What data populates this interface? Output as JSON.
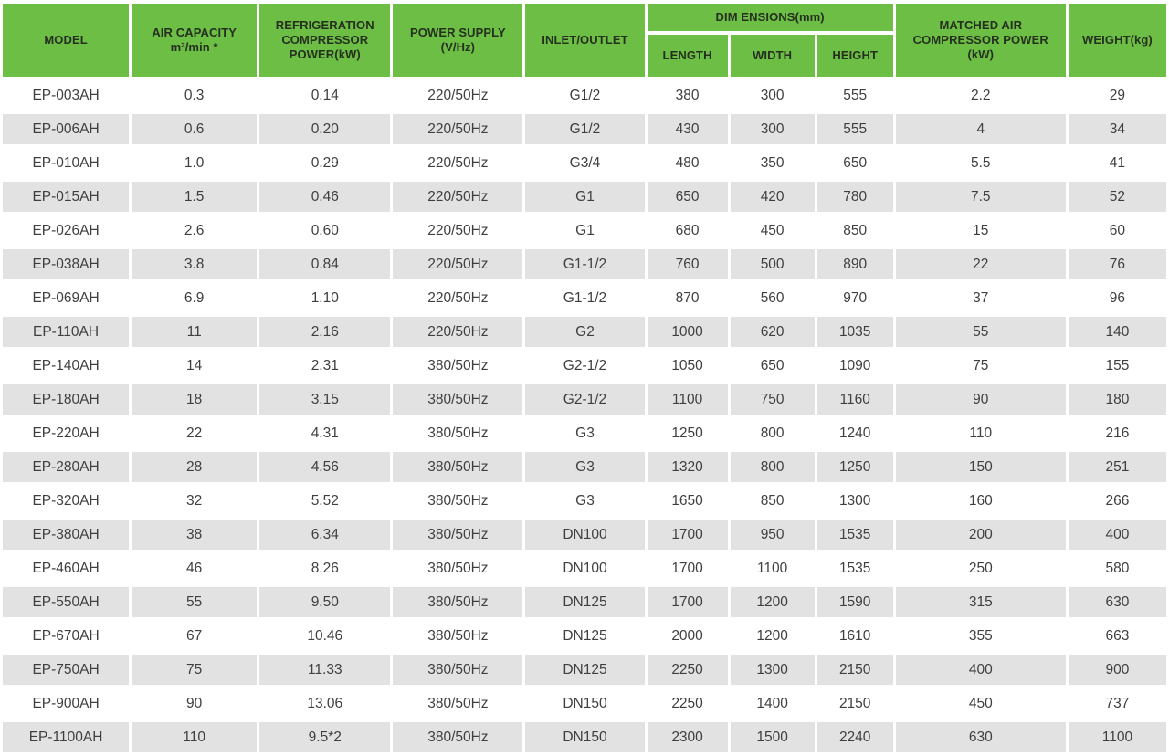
{
  "table": {
    "header": {
      "model": "MODEL",
      "air_capacity": "AIR CAPACITY\nm³/min *",
      "refrigeration_power": "REFRIGERATION\nCOMPRESSOR\nPOWER(kW)",
      "power_supply": "POWER SUPPLY\n(V/Hz)",
      "inlet_outlet": "INLET/OUTLET",
      "dimensions_group": "DIM ENSIONS(mm)",
      "length": "LENGTH",
      "width": "WIDTH",
      "height": "HEIGHT",
      "matched_power": "MATCHED AIR\nCOMPRESSOR POWER\n(kW)",
      "weight": "WEIGHT(kg)"
    },
    "column_keys": [
      "model",
      "air-capacity",
      "refrigeration-power",
      "power-supply",
      "inlet-outlet",
      "length",
      "width",
      "height",
      "matched-power",
      "weight"
    ],
    "rows": [
      [
        "EP-003AH",
        "0.3",
        "0.14",
        "220/50Hz",
        "G1/2",
        "380",
        "300",
        "555",
        "2.2",
        "29"
      ],
      [
        "EP-006AH",
        "0.6",
        "0.20",
        "220/50Hz",
        "G1/2",
        "430",
        "300",
        "555",
        "4",
        "34"
      ],
      [
        "EP-010AH",
        "1.0",
        "0.29",
        "220/50Hz",
        "G3/4",
        "480",
        "350",
        "650",
        "5.5",
        "41"
      ],
      [
        "EP-015AH",
        "1.5",
        "0.46",
        "220/50Hz",
        "G1",
        "650",
        "420",
        "780",
        "7.5",
        "52"
      ],
      [
        "EP-026AH",
        "2.6",
        "0.60",
        "220/50Hz",
        "G1",
        "680",
        "450",
        "850",
        "15",
        "60"
      ],
      [
        "EP-038AH",
        "3.8",
        "0.84",
        "220/50Hz",
        "G1-1/2",
        "760",
        "500",
        "890",
        "22",
        "76"
      ],
      [
        "EP-069AH",
        "6.9",
        "1.10",
        "220/50Hz",
        "G1-1/2",
        "870",
        "560",
        "970",
        "37",
        "96"
      ],
      [
        "EP-110AH",
        "11",
        "2.16",
        "220/50Hz",
        "G2",
        "1000",
        "620",
        "1035",
        "55",
        "140"
      ],
      [
        "EP-140AH",
        "14",
        "2.31",
        "380/50Hz",
        "G2-1/2",
        "1050",
        "650",
        "1090",
        "75",
        "155"
      ],
      [
        "EP-180AH",
        "18",
        "3.15",
        "380/50Hz",
        "G2-1/2",
        "1100",
        "750",
        "1160",
        "90",
        "180"
      ],
      [
        "EP-220AH",
        "22",
        "4.31",
        "380/50Hz",
        "G3",
        "1250",
        "800",
        "1240",
        "110",
        "216"
      ],
      [
        "EP-280AH",
        "28",
        "4.56",
        "380/50Hz",
        "G3",
        "1320",
        "800",
        "1250",
        "150",
        "251"
      ],
      [
        "EP-320AH",
        "32",
        "5.52",
        "380/50Hz",
        "G3",
        "1650",
        "850",
        "1300",
        "160",
        "266"
      ],
      [
        "EP-380AH",
        "38",
        "6.34",
        "380/50Hz",
        "DN100",
        "1700",
        "950",
        "1535",
        "200",
        "400"
      ],
      [
        "EP-460AH",
        "46",
        "8.26",
        "380/50Hz",
        "DN100",
        "1700",
        "1100",
        "1535",
        "250",
        "580"
      ],
      [
        "EP-550AH",
        "55",
        "9.50",
        "380/50Hz",
        "DN125",
        "1700",
        "1200",
        "1590",
        "315",
        "630"
      ],
      [
        "EP-670AH",
        "67",
        "10.46",
        "380/50Hz",
        "DN125",
        "2000",
        "1200",
        "1610",
        "355",
        "663"
      ],
      [
        "EP-750AH",
        "75",
        "11.33",
        "380/50Hz",
        "DN125",
        "2250",
        "1300",
        "2150",
        "400",
        "900"
      ],
      [
        "EP-900AH",
        "90",
        "13.06",
        "380/50Hz",
        "DN150",
        "2250",
        "1400",
        "2150",
        "450",
        "737"
      ],
      [
        "EP-1100AH",
        "110",
        "9.5*2",
        "380/50Hz",
        "DN150",
        "2300",
        "1500",
        "2240",
        "630",
        "1100"
      ]
    ]
  },
  "colors": {
    "header_bg": "#6cbe45",
    "header_text": "#26301f",
    "row_alt_bg": "#e2e2e2",
    "cell_text": "#3f3f3f",
    "background": "#ffffff"
  }
}
